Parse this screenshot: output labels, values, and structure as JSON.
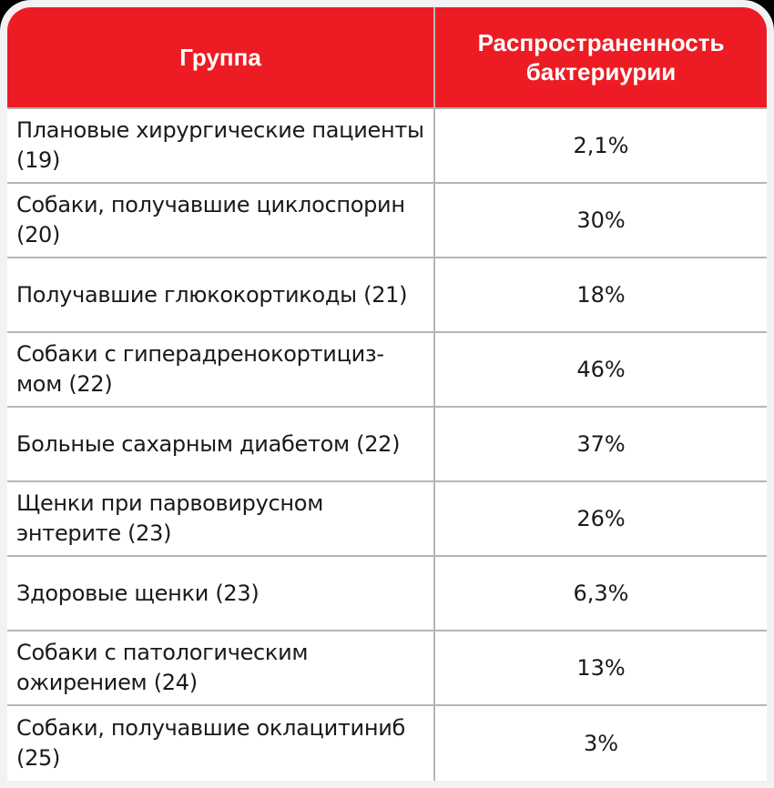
{
  "table": {
    "headers": {
      "group": "Группа",
      "prevalence": "Распространенность бактериурии"
    },
    "rows": [
      {
        "group": "Плановые хирургические пациенты (19)",
        "prevalence": "2,1%"
      },
      {
        "group": "Собаки, получавшие циклоспорин (20)",
        "prevalence": "30%"
      },
      {
        "group": "Получавшие глюкокортикоды (21)",
        "prevalence": "18%"
      },
      {
        "group": "Собаки с гиперадренокортициз-мом (22)",
        "prevalence": "46%"
      },
      {
        "group": "Больные сахарным диабетом (22)",
        "prevalence": "37%"
      },
      {
        "group": "Щенки при парвовирусном энтерите (23)",
        "prevalence": "26%"
      },
      {
        "group": "Здоровые щенки (23)",
        "prevalence": "6,3%"
      },
      {
        "group": "Собаки с патологическим ожирением (24)",
        "prevalence": "13%"
      },
      {
        "group": "Собаки, получавшие оклацитиниб (25)",
        "prevalence": "3%"
      }
    ]
  },
  "colors": {
    "header_bg": "#ed1c24",
    "header_text": "#ffffff",
    "grid": "#b5b5b5",
    "frame": "#f2f2f2"
  }
}
